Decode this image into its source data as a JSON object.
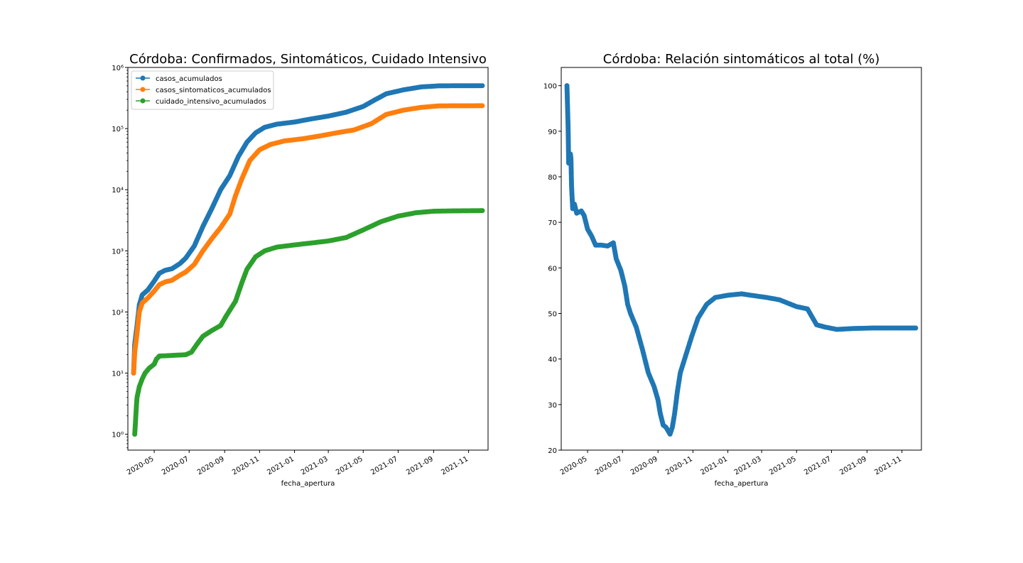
{
  "figure": {
    "left_chart_title": "Córdoba: Confirmados, Sintomáticos, Cuidado Intensivo",
    "right_chart_title": "Córdoba: Relación sintomáticos al total (%)"
  },
  "chart_data": [
    {
      "type": "line",
      "title": "Córdoba: Confirmados, Sintomáticos, Cuidado Intensivo",
      "xlabel": "fecha_apertura",
      "ylabel": "",
      "yscale": "log",
      "ylim": [
        0.55,
        1000000
      ],
      "xlim": [
        "2020-03-16",
        "2021-12-05"
      ],
      "x_ticks": [
        "2020-05",
        "2020-07",
        "2020-09",
        "2020-11",
        "2021-01",
        "2021-03",
        "2021-05",
        "2021-07",
        "2021-09",
        "2021-11"
      ],
      "y_ticks": [
        "10⁰",
        "10¹",
        "10²",
        "10³",
        "10⁴",
        "10⁵",
        "10⁶"
      ],
      "legend": "upper-left",
      "grid": false,
      "markers": true,
      "series": [
        {
          "name": "casos_acumulados",
          "color": "#1f77b4",
          "points": [
            [
              "2020-03-26",
              10
            ],
            [
              "2020-03-28",
              30
            ],
            [
              "2020-04-01",
              60
            ],
            [
              "2020-04-05",
              130
            ],
            [
              "2020-04-10",
              190
            ],
            [
              "2020-04-20",
              230
            ],
            [
              "2020-05-01",
              320
            ],
            [
              "2020-05-10",
              430
            ],
            [
              "2020-05-20",
              480
            ],
            [
              "2020-06-01",
              510
            ],
            [
              "2020-06-15",
              620
            ],
            [
              "2020-06-25",
              760
            ],
            [
              "2020-07-10",
              1200
            ],
            [
              "2020-07-25",
              2500
            ],
            [
              "2020-08-10",
              5000
            ],
            [
              "2020-08-25",
              10000
            ],
            [
              "2020-09-10",
              17000
            ],
            [
              "2020-09-25",
              35000
            ],
            [
              "2020-10-10",
              60000
            ],
            [
              "2020-10-25",
              85000
            ],
            [
              "2020-11-10",
              105000
            ],
            [
              "2020-12-01",
              118000
            ],
            [
              "2021-01-01",
              128000
            ],
            [
              "2021-02-01",
              145000
            ],
            [
              "2021-03-01",
              160000
            ],
            [
              "2021-04-01",
              185000
            ],
            [
              "2021-05-01",
              230000
            ],
            [
              "2021-05-20",
              290000
            ],
            [
              "2021-06-10",
              370000
            ],
            [
              "2021-07-10",
              430000
            ],
            [
              "2021-08-10",
              480000
            ],
            [
              "2021-09-10",
              500000
            ],
            [
              "2021-10-10",
              502000
            ],
            [
              "2021-11-25",
              503000
            ]
          ]
        },
        {
          "name": "casos_sintomaticos_acumulados",
          "color": "#ff7f0e",
          "points": [
            [
              "2020-03-26",
              10
            ],
            [
              "2020-03-28",
              22
            ],
            [
              "2020-04-01",
              45
            ],
            [
              "2020-04-05",
              100
            ],
            [
              "2020-04-10",
              140
            ],
            [
              "2020-04-20",
              170
            ],
            [
              "2020-05-01",
              220
            ],
            [
              "2020-05-10",
              280
            ],
            [
              "2020-05-20",
              310
            ],
            [
              "2020-06-01",
              330
            ],
            [
              "2020-06-15",
              400
            ],
            [
              "2020-06-25",
              450
            ],
            [
              "2020-07-10",
              600
            ],
            [
              "2020-07-25",
              1000
            ],
            [
              "2020-08-10",
              1600
            ],
            [
              "2020-08-25",
              2400
            ],
            [
              "2020-09-10",
              4000
            ],
            [
              "2020-09-20",
              8000
            ],
            [
              "2020-10-01",
              15000
            ],
            [
              "2020-10-15",
              30000
            ],
            [
              "2020-11-01",
              45000
            ],
            [
              "2020-11-20",
              55000
            ],
            [
              "2020-12-15",
              63000
            ],
            [
              "2021-01-15",
              68000
            ],
            [
              "2021-02-15",
              76000
            ],
            [
              "2021-03-15",
              85000
            ],
            [
              "2021-04-15",
              95000
            ],
            [
              "2021-05-15",
              120000
            ],
            [
              "2021-06-10",
              170000
            ],
            [
              "2021-07-10",
              200000
            ],
            [
              "2021-08-10",
              222000
            ],
            [
              "2021-09-10",
              235000
            ],
            [
              "2021-10-10",
              236000
            ],
            [
              "2021-11-25",
              236500
            ]
          ]
        },
        {
          "name": "cuidado_intensivo_acumulados",
          "color": "#2ca02c",
          "points": [
            [
              "2020-03-28",
              1
            ],
            [
              "2020-03-31",
              3
            ],
            [
              "2020-04-01",
              4
            ],
            [
              "2020-04-05",
              6
            ],
            [
              "2020-04-10",
              8
            ],
            [
              "2020-04-15",
              10
            ],
            [
              "2020-04-22",
              12
            ],
            [
              "2020-05-01",
              14
            ],
            [
              "2020-05-05",
              17
            ],
            [
              "2020-05-10",
              19
            ],
            [
              "2020-06-25",
              20
            ],
            [
              "2020-07-05",
              22
            ],
            [
              "2020-07-15",
              30
            ],
            [
              "2020-07-25",
              40
            ],
            [
              "2020-08-10",
              50
            ],
            [
              "2020-08-25",
              60
            ],
            [
              "2020-09-05",
              90
            ],
            [
              "2020-09-20",
              150
            ],
            [
              "2020-10-01",
              300
            ],
            [
              "2020-10-10",
              500
            ],
            [
              "2020-10-25",
              800
            ],
            [
              "2020-11-10",
              1000
            ],
            [
              "2020-12-01",
              1150
            ],
            [
              "2021-01-01",
              1250
            ],
            [
              "2021-02-01",
              1350
            ],
            [
              "2021-03-01",
              1450
            ],
            [
              "2021-04-01",
              1650
            ],
            [
              "2021-05-01",
              2200
            ],
            [
              "2021-06-01",
              3000
            ],
            [
              "2021-07-01",
              3700
            ],
            [
              "2021-08-01",
              4200
            ],
            [
              "2021-09-01",
              4450
            ],
            [
              "2021-10-01",
              4500
            ],
            [
              "2021-11-25",
              4550
            ]
          ]
        }
      ]
    },
    {
      "type": "line",
      "title": "Córdoba: Relación sintomáticos al total (%)",
      "xlabel": "fecha_apertura",
      "ylabel": "",
      "yscale": "linear",
      "ylim": [
        20,
        104
      ],
      "xlim": [
        "2020-03-16",
        "2021-12-05"
      ],
      "x_ticks": [
        "2020-05",
        "2020-07",
        "2020-09",
        "2020-11",
        "2021-01",
        "2021-03",
        "2021-05",
        "2021-07",
        "2021-09",
        "2021-11"
      ],
      "y_ticks": [
        "20",
        "30",
        "40",
        "50",
        "60",
        "70",
        "80",
        "90",
        "100"
      ],
      "grid": false,
      "markers": true,
      "series": [
        {
          "color": "#1f77b4",
          "points": [
            [
              "2020-03-26",
              100
            ],
            [
              "2020-03-28",
              91
            ],
            [
              "2020-03-29",
              83
            ],
            [
              "2020-04-01",
              85
            ],
            [
              "2020-04-02",
              84
            ],
            [
              "2020-04-03",
              78
            ],
            [
              "2020-04-05",
              73
            ],
            [
              "2020-04-08",
              74
            ],
            [
              "2020-04-12",
              72
            ],
            [
              "2020-04-20",
              72.5
            ],
            [
              "2020-04-25",
              71.5
            ],
            [
              "2020-05-01",
              68.5
            ],
            [
              "2020-05-08",
              67
            ],
            [
              "2020-05-15",
              65
            ],
            [
              "2020-05-25",
              65
            ],
            [
              "2020-06-05",
              64.8
            ],
            [
              "2020-06-15",
              65.5
            ],
            [
              "2020-06-20",
              62
            ],
            [
              "2020-06-28",
              59.5
            ],
            [
              "2020-07-05",
              56
            ],
            [
              "2020-07-10",
              52
            ],
            [
              "2020-07-15",
              50
            ],
            [
              "2020-07-25",
              47
            ],
            [
              "2020-08-05",
              42
            ],
            [
              "2020-08-15",
              37
            ],
            [
              "2020-08-25",
              34
            ],
            [
              "2020-09-01",
              31
            ],
            [
              "2020-09-05",
              28
            ],
            [
              "2020-09-10",
              25.5
            ],
            [
              "2020-09-15",
              25
            ],
            [
              "2020-09-22",
              23.5
            ],
            [
              "2020-09-26",
              25
            ],
            [
              "2020-09-30",
              28
            ],
            [
              "2020-10-05",
              33
            ],
            [
              "2020-10-10",
              37
            ],
            [
              "2020-10-20",
              41
            ],
            [
              "2020-10-30",
              45
            ],
            [
              "2020-11-10",
              49
            ],
            [
              "2020-11-25",
              52
            ],
            [
              "2020-12-10",
              53.5
            ],
            [
              "2021-01-01",
              54
            ],
            [
              "2021-01-25",
              54.3
            ],
            [
              "2021-02-10",
              54
            ],
            [
              "2021-03-10",
              53.5
            ],
            [
              "2021-04-01",
              53
            ],
            [
              "2021-05-01",
              51.5
            ],
            [
              "2021-05-20",
              51
            ],
            [
              "2021-06-05",
              47.5
            ],
            [
              "2021-06-20",
              47
            ],
            [
              "2021-07-10",
              46.5
            ],
            [
              "2021-08-10",
              46.7
            ],
            [
              "2021-09-10",
              46.8
            ],
            [
              "2021-10-10",
              46.8
            ],
            [
              "2021-11-25",
              46.8
            ]
          ]
        }
      ]
    }
  ]
}
